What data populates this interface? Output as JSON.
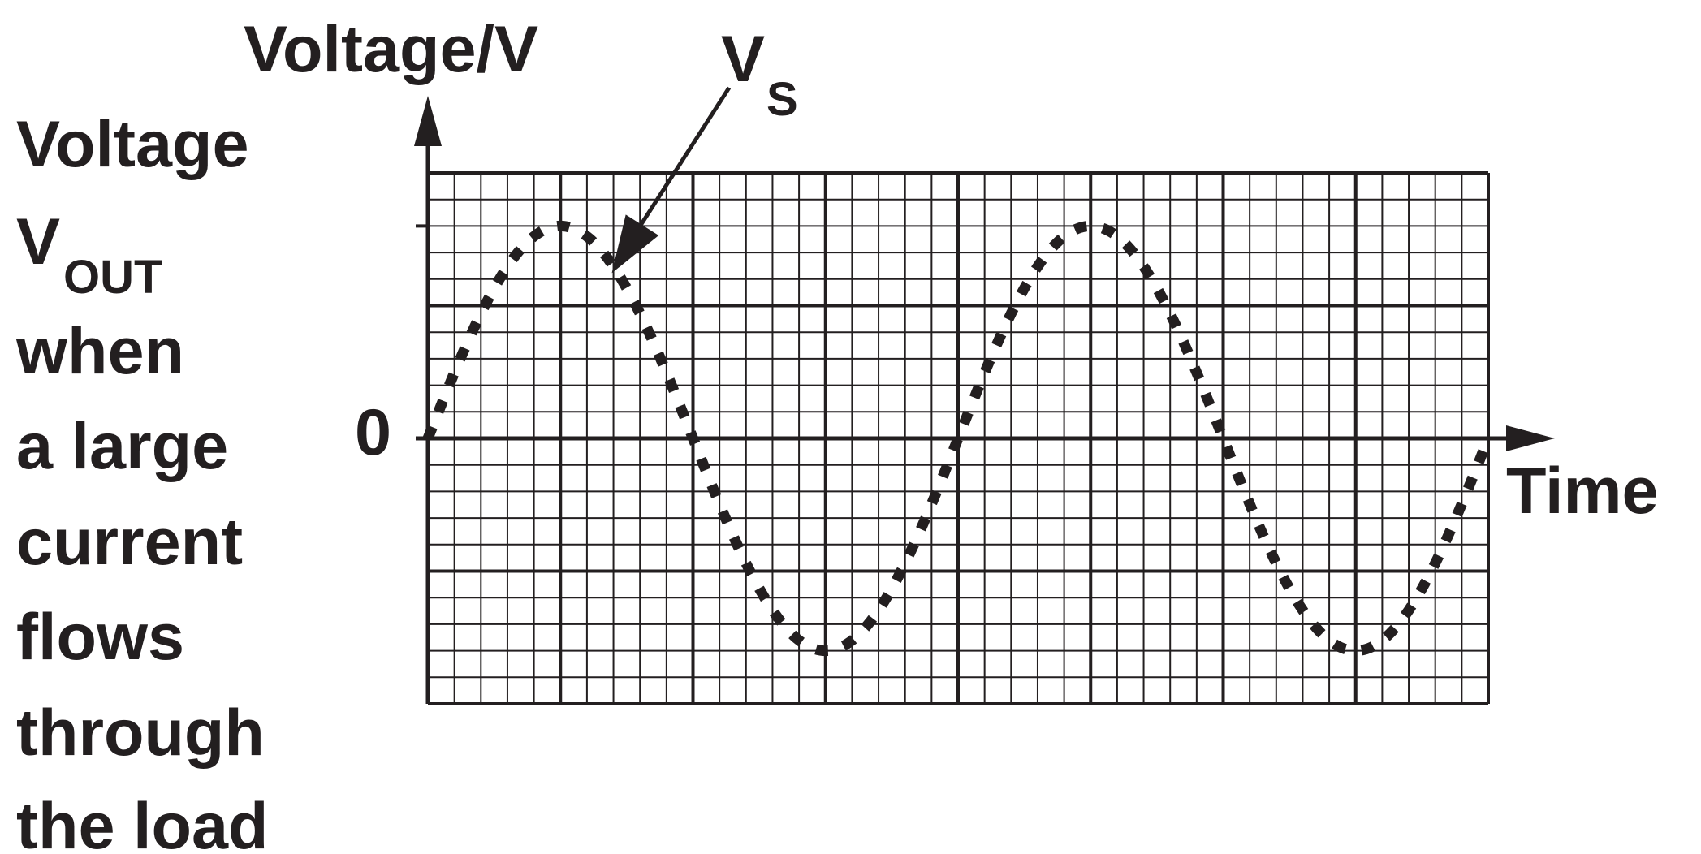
{
  "side_label": {
    "line1": "Voltage",
    "line2_main": "V",
    "line2_sub": "OUT",
    "line3": "when",
    "line4": "a large",
    "line5": "current",
    "line6": "flows",
    "line7": "through",
    "line8": "the load"
  },
  "chart_data": {
    "type": "line",
    "title": "",
    "xlabel": "Time",
    "ylabel": "Voltage/V",
    "y_tick_label": "0",
    "x_range": [
      0,
      40
    ],
    "y_range": [
      -10,
      10
    ],
    "grid": true,
    "grid_minor_divisions": {
      "x": 40,
      "y": 20
    },
    "grid_major_divisions": {
      "x": 8,
      "y": 4
    },
    "series": [
      {
        "name_main": "V",
        "name_sub": "S",
        "style": "dotted",
        "color": "#231f20",
        "amplitude": 8,
        "period": 20,
        "phase": 0,
        "x": [
          0,
          1,
          2,
          3,
          4,
          5,
          6,
          7,
          8,
          9,
          10,
          11,
          12,
          13,
          14,
          15,
          16,
          17,
          18,
          19,
          20,
          21,
          22,
          23,
          24,
          25,
          26,
          27,
          28,
          29,
          30,
          31,
          32,
          33,
          34,
          35,
          36,
          37,
          38,
          39,
          40
        ],
        "y": [
          0,
          2.47,
          4.7,
          6.47,
          7.61,
          8,
          7.61,
          6.47,
          4.7,
          2.47,
          0,
          -2.47,
          -4.7,
          -6.47,
          -7.61,
          -8,
          -7.61,
          -6.47,
          -4.7,
          -2.47,
          0,
          2.47,
          4.7,
          6.47,
          7.61,
          8,
          7.61,
          6.47,
          4.7,
          2.47,
          0,
          -2.47,
          -4.7,
          -6.47,
          -7.61,
          -8,
          -7.61,
          -6.47,
          -4.7,
          -2.47,
          0
        ]
      }
    ],
    "annotation": {
      "target_series": "V_S",
      "points_to_x": 7
    }
  }
}
